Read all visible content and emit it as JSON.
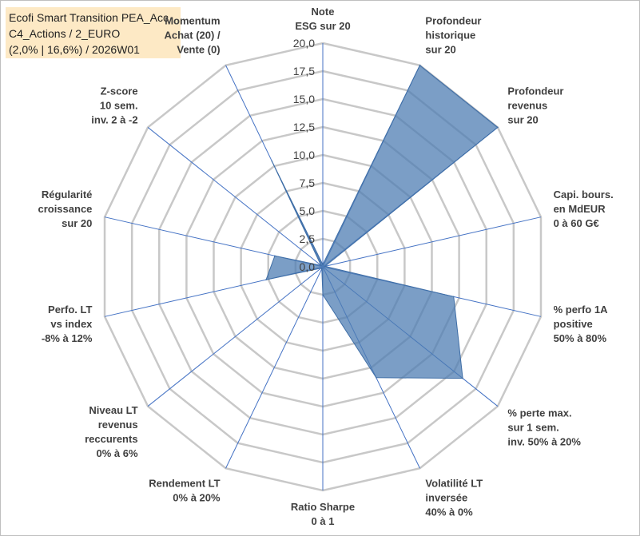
{
  "chart_data": {
    "type": "radar",
    "title_lines": [
      "Ecofi Smart Transition PEA_Acc",
      "C4_Actions / 2_EURO",
      "(2,0% | 16,6%) / 2026W01"
    ],
    "rmax": 20,
    "ticks": [
      "0,0",
      "2,5",
      "5,0",
      "7,5",
      "10,0",
      "12,5",
      "15,0",
      "17,5",
      "20,0"
    ],
    "categories": [
      [
        "Note",
        "ESG sur 20"
      ],
      [
        "Profondeur",
        "historique",
        "sur 20"
      ],
      [
        "Profondeur",
        "revenus",
        "sur 20"
      ],
      [
        "Capi. bours.",
        "en MdEUR",
        "0 à 60 G€"
      ],
      [
        "% perfo 1A",
        "positive",
        "50% à 80%"
      ],
      [
        "% perte max.",
        "sur 1 sem.",
        "inv. 50% à 20%"
      ],
      [
        "Volatilité LT",
        "inversée",
        "40% à 0%"
      ],
      [
        "Ratio Sharpe",
        "0 à 1"
      ],
      [
        "Rendement LT",
        "0% à 20%"
      ],
      [
        "Niveau LT",
        "revenus",
        "reccurents",
        "0% à 6%"
      ],
      [
        "Perfo. LT",
        "vs index",
        "-8% à 12%"
      ],
      [
        "Régularité",
        "croissance",
        "sur 20"
      ],
      [
        "Z-score",
        "10 sem.",
        "inv. 2 à -2"
      ],
      [
        "Momentum",
        "Achat (20) /",
        "Vente (0)"
      ]
    ],
    "values": [
      0.2,
      20,
      20,
      0.2,
      12,
      16,
      11,
      2.5,
      0.2,
      0.2,
      5.2,
      4.4,
      0.2,
      10.5
    ],
    "fill_color": "#4f7db3",
    "fill_opacity": 0.75,
    "stroke_color": "#3f6ea6",
    "grid_color": "#c8c8c8",
    "spoke_color": "#4472c4",
    "grid": true
  }
}
